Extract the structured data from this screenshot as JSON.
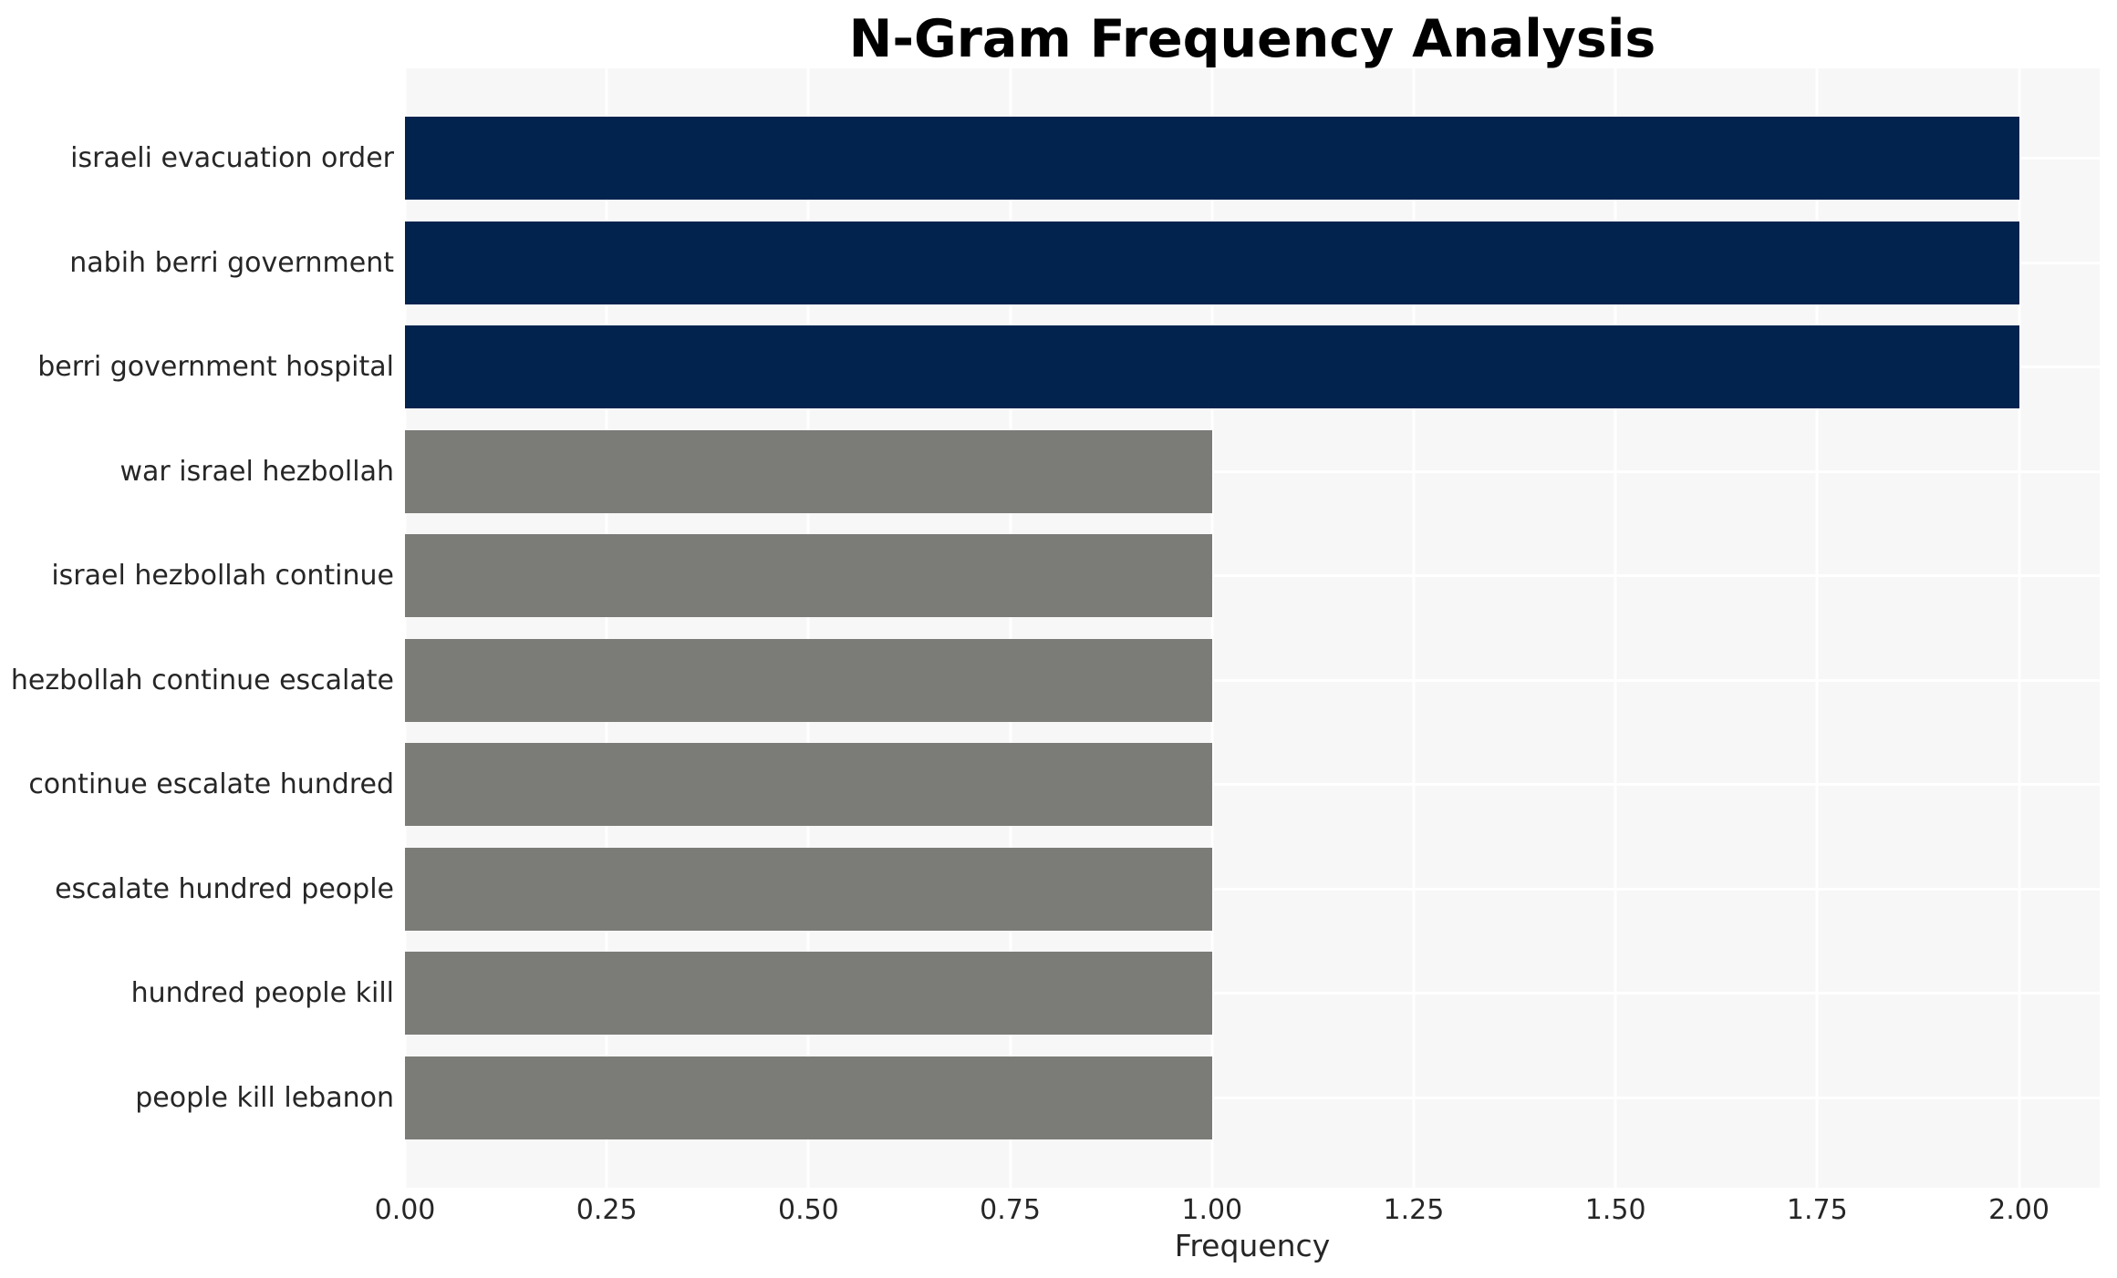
{
  "title": "N-Gram Frequency Analysis",
  "chart_data": {
    "type": "bar",
    "orientation": "horizontal",
    "title": "N-Gram Frequency Analysis",
    "xlabel": "Frequency",
    "ylabel": "",
    "categories": [
      "israeli evacuation order",
      "nabih berri government",
      "berri government hospital",
      "war israel hezbollah",
      "israel hezbollah continue",
      "hezbollah continue escalate",
      "continue escalate hundred",
      "escalate hundred people",
      "hundred people kill",
      "people kill lebanon"
    ],
    "values": [
      2,
      2,
      2,
      1,
      1,
      1,
      1,
      1,
      1,
      1
    ],
    "bar_colors": [
      "#01234e",
      "#01234e",
      "#01234e",
      "#7b7b78",
      "#7b7b78",
      "#7b7b78",
      "#7b7b78",
      "#7b7b78",
      "#7b7b78",
      "#7b7b78"
    ],
    "xlim": [
      0,
      2.1
    ],
    "xticks": [
      0,
      0.25,
      0.5,
      0.75,
      1,
      1.25,
      1.5,
      1.75,
      2
    ],
    "xtick_labels": [
      "0.00",
      "0.25",
      "0.50",
      "0.75",
      "1.00",
      "1.25",
      "1.50",
      "1.75",
      "2.00"
    ],
    "grid": true,
    "legend": false,
    "colors": {
      "frequent_bar": "#01234e",
      "single_bar": "#7b7b78",
      "plot_background": "#f7f7f7",
      "gridline": "#ffffff",
      "text": "#262626",
      "title_text": "#000000"
    }
  }
}
